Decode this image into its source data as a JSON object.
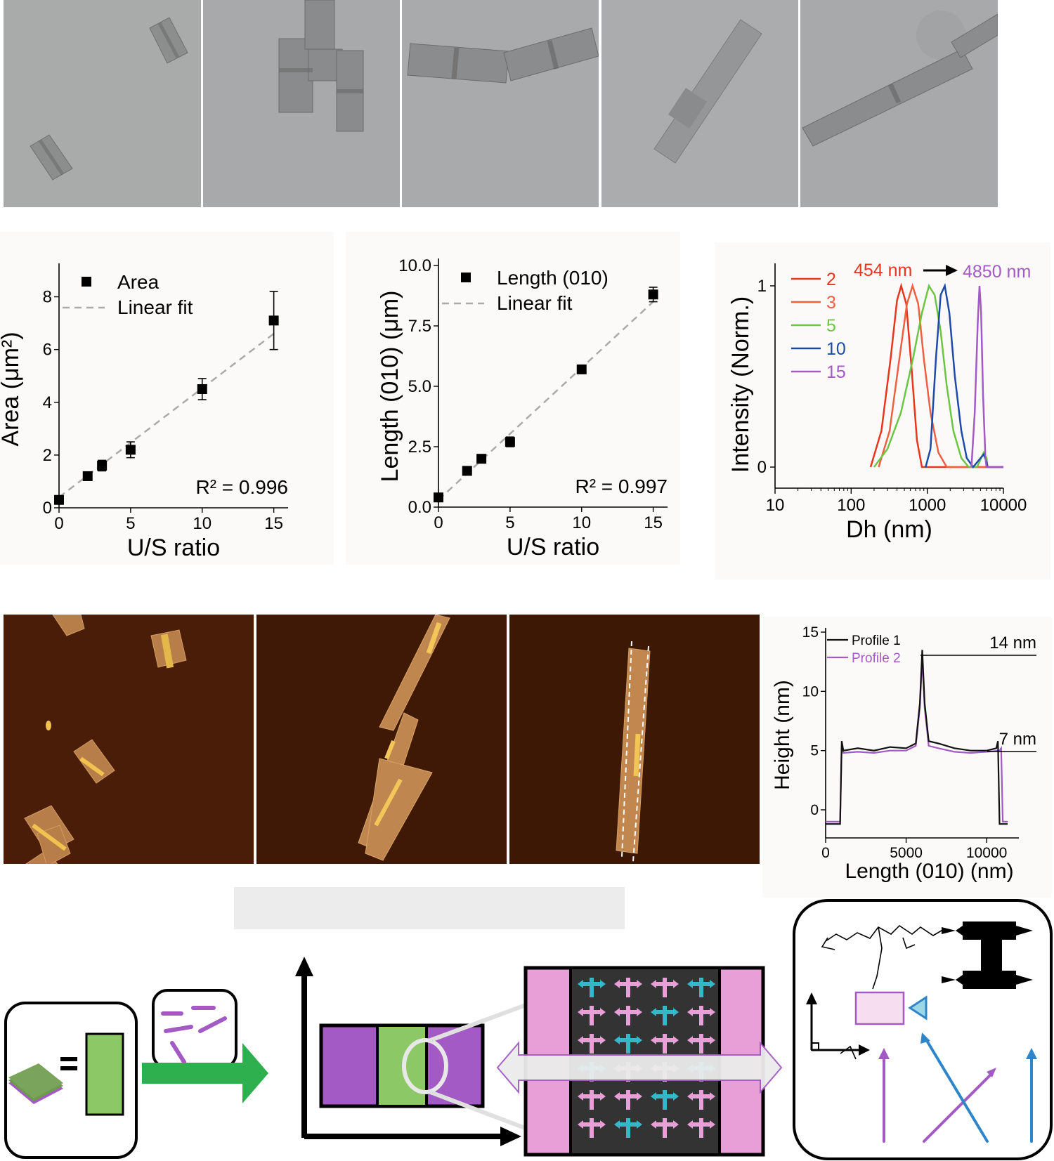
{
  "chart_data": [
    {
      "type": "scatter",
      "xlabel": "U/S ratio",
      "ylabel": "Area (μm²)",
      "xlim": [
        0,
        16
      ],
      "ylim": [
        0,
        9
      ],
      "xticks": [
        "0",
        "5",
        "10",
        "15"
      ],
      "yticks": [
        "0",
        "2",
        "4",
        "6",
        "8"
      ],
      "legend": [
        "Area",
        "Linear fit"
      ],
      "annotation": "R² = 0.996",
      "x": [
        0,
        2,
        3,
        5,
        10,
        15
      ],
      "y": [
        0.3,
        1.2,
        1.6,
        2.2,
        4.5,
        7.1
      ],
      "yerr": [
        0.1,
        0.1,
        0.2,
        0.3,
        0.4,
        1.1
      ],
      "fit": [
        [
          0,
          0.4
        ],
        [
          15,
          6.6
        ]
      ]
    },
    {
      "type": "scatter",
      "xlabel": "U/S ratio",
      "ylabel": "Length (010) (μm)",
      "xlim": [
        0,
        16
      ],
      "ylim": [
        0,
        10
      ],
      "xticks": [
        "0",
        "5",
        "10",
        "15"
      ],
      "yticks": [
        "0.0",
        "2.5",
        "5.0",
        "7.5",
        "10.0"
      ],
      "legend": [
        "Length (010)",
        "Linear fit"
      ],
      "annotation": "R² = 0.997",
      "x": [
        0,
        2,
        3,
        5,
        10,
        15
      ],
      "y": [
        0.4,
        1.5,
        2.0,
        2.7,
        5.7,
        8.8
      ],
      "yerr": [
        0.05,
        0.05,
        0.05,
        0.2,
        0.05,
        0.3
      ],
      "fit": [
        [
          0,
          0.3
        ],
        [
          15,
          8.5
        ]
      ]
    },
    {
      "type": "line",
      "xlabel": "Dh (nm)",
      "ylabel": "Intensity (Norm.)",
      "xscale": "log",
      "xlim": [
        10,
        10000
      ],
      "ylim": [
        0,
        1
      ],
      "xticks": [
        "10",
        "100",
        "1000",
        "10000"
      ],
      "yticks": [
        "0",
        "1"
      ],
      "annotations": [
        "454 nm",
        "4850 nm"
      ],
      "series": [
        {
          "name": "2",
          "color": "#e8361e",
          "x": [
            180,
            250,
            330,
            400,
            454,
            530,
            620,
            730,
            850,
            10000
          ],
          "y": [
            0,
            0.2,
            0.6,
            0.92,
            1.0,
            0.9,
            0.55,
            0.15,
            0,
            0
          ]
        },
        {
          "name": "3",
          "color": "#f06040",
          "x": [
            230,
            320,
            430,
            540,
            640,
            760,
            900,
            1100,
            1400,
            1800,
            10000
          ],
          "y": [
            0,
            0.2,
            0.6,
            0.9,
            1.0,
            0.9,
            0.6,
            0.3,
            0.08,
            0,
            0
          ]
        },
        {
          "name": "5",
          "color": "#6cc643",
          "x": [
            200,
            300,
            450,
            650,
            850,
            1050,
            1250,
            1500,
            1800,
            2200,
            2800,
            3500,
            4500,
            5500,
            6000,
            6200,
            10000
          ],
          "y": [
            0,
            0.1,
            0.3,
            0.6,
            0.85,
            1.0,
            0.95,
            0.75,
            0.45,
            0.2,
            0.05,
            0,
            0,
            0.08,
            0.05,
            0,
            0
          ]
        },
        {
          "name": "10",
          "color": "#1e4aa8",
          "x": [
            950,
            1100,
            1300,
            1500,
            1700,
            1950,
            2300,
            2800,
            3300,
            4000,
            5500,
            6000,
            6200,
            10000
          ],
          "y": [
            0,
            0.1,
            0.6,
            0.95,
            1.0,
            0.85,
            0.5,
            0.2,
            0.05,
            0,
            0.07,
            0.03,
            0,
            0
          ]
        },
        {
          "name": "15",
          "color": "#a35ac4",
          "x": [
            3800,
            4200,
            4600,
            4850,
            5100,
            5400,
            5800,
            6000,
            10000
          ],
          "y": [
            0,
            0.3,
            0.8,
            1.0,
            0.85,
            0.4,
            0.05,
            0,
            0
          ]
        }
      ]
    },
    {
      "type": "line",
      "xlabel": "Length (010) (nm)",
      "ylabel": "Height (nm)",
      "xlim": [
        0,
        12000
      ],
      "ylim": [
        -2,
        15
      ],
      "xticks": [
        "0",
        "5000",
        "10000"
      ],
      "yticks": [
        "0",
        "5",
        "10",
        "15"
      ],
      "annotations": [
        "14 nm",
        "7 nm"
      ],
      "series": [
        {
          "name": "Profile 1",
          "color": "#111111",
          "x": [
            0,
            900,
            1000,
            1100,
            2000,
            3000,
            4000,
            5000,
            5600,
            5850,
            6000,
            6150,
            6400,
            7000,
            8000,
            9000,
            10000,
            10600,
            10700,
            10800,
            11300
          ],
          "y": [
            -1.2,
            -1.2,
            5.8,
            5.0,
            5.2,
            5.0,
            5.3,
            5.2,
            5.6,
            9.0,
            13.5,
            9.0,
            5.8,
            5.6,
            5.2,
            5.0,
            5.0,
            5.2,
            5.8,
            -1.2,
            -1.2
          ]
        },
        {
          "name": "Profile 2",
          "color": "#a35ac4",
          "x": [
            0,
            900,
            1000,
            1100,
            2000,
            3000,
            4000,
            5000,
            5600,
            5850,
            6000,
            6150,
            6400,
            7000,
            8000,
            9000,
            10000,
            10800,
            10900,
            11000,
            11300
          ],
          "y": [
            -1.0,
            -1.0,
            5.4,
            4.8,
            4.9,
            4.8,
            5.0,
            5.0,
            5.4,
            8.6,
            12.8,
            8.6,
            5.4,
            5.2,
            4.9,
            4.8,
            4.9,
            5.0,
            5.2,
            -1.0,
            -1.0
          ]
        }
      ]
    }
  ],
  "colors": {
    "purple": "#a35ac4",
    "green": "#8cc966",
    "pink": "#e89ed6",
    "cyan": "#34b8c8",
    "arrow_blue": "#2e86c8",
    "arrow_green": "#2fb04e"
  }
}
